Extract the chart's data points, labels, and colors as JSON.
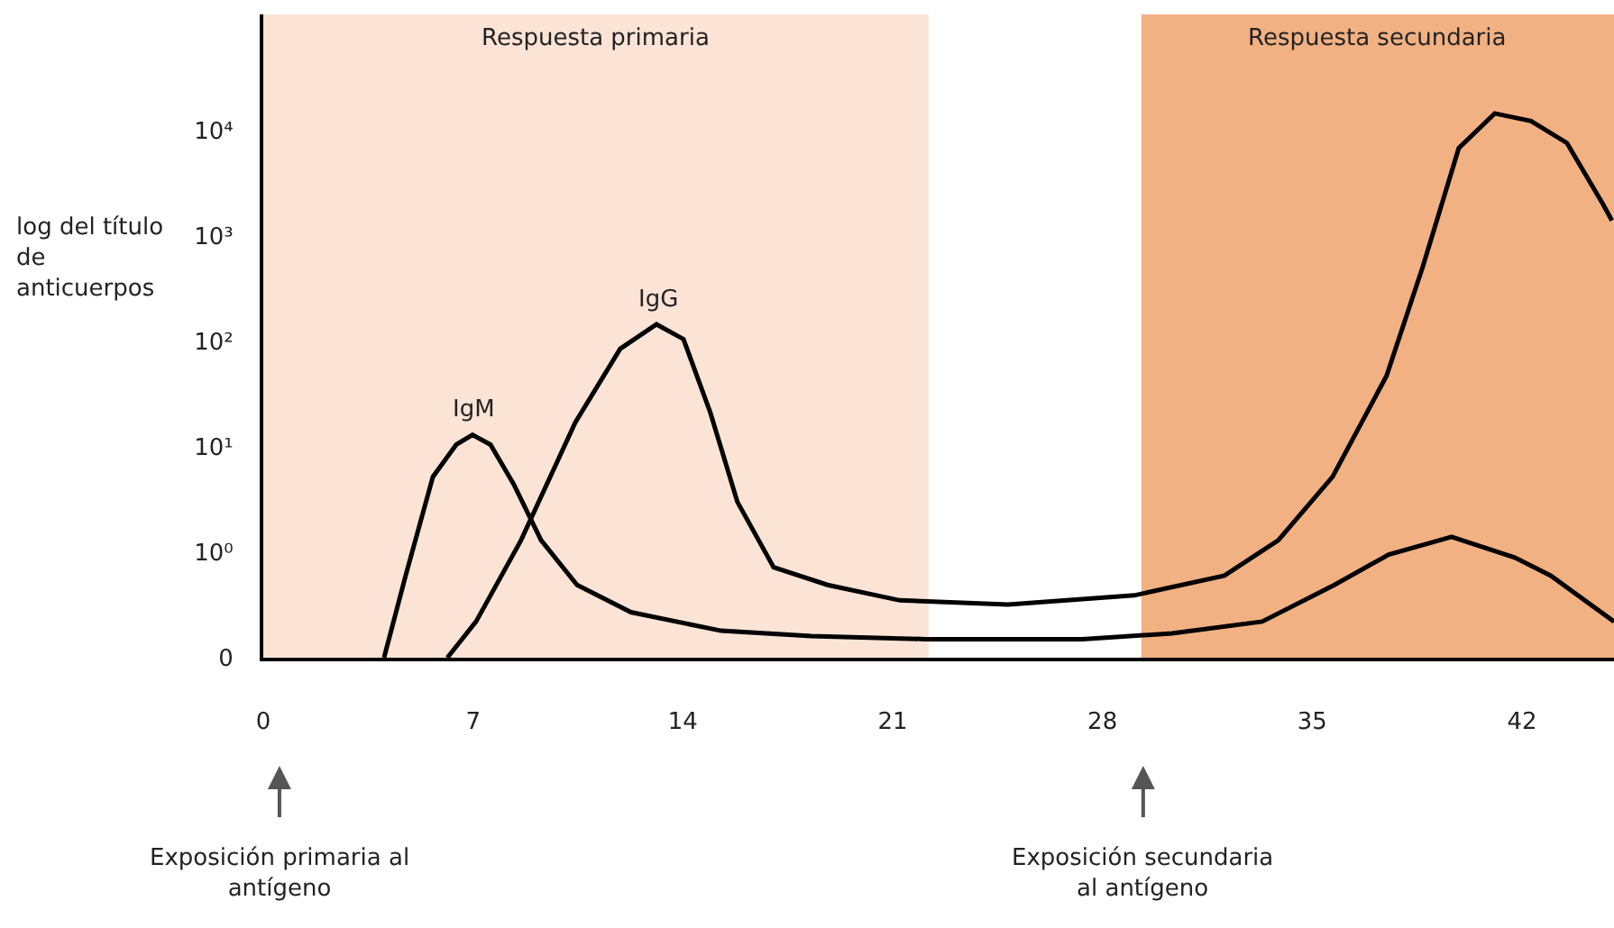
{
  "chart_data": {
    "type": "line",
    "ylabel": "log del título\nde\nanticuerpos",
    "xlim": [
      0,
      45.07
    ],
    "xticks": [
      0,
      7,
      14,
      21,
      28,
      35,
      42
    ],
    "log": "y",
    "ylim": [
      0,
      126000
    ],
    "yticks": [
      0,
      {
        "value": 1,
        "label": "10⁰"
      },
      {
        "value": 10,
        "label": "10¹"
      },
      {
        "value": 100,
        "label": "10²"
      },
      {
        "value": 1000,
        "label": "10³"
      },
      {
        "value": 10000,
        "label": "10⁴"
      }
    ],
    "marker": "none",
    "line_style": "solid",
    "series": [
      {
        "color": "#000000",
        "x": [
          4.03,
          4.75,
          5.66,
          6.44,
          6.98,
          7.58,
          8.36,
          9.27,
          10.47,
          12.27,
          15.28,
          18.29,
          22.08,
          27.32,
          30.32,
          33.33,
          35.74,
          37.55,
          39.65,
          41.76,
          42.96,
          45.07
        ],
        "values": [
          0.1,
          0.6,
          5.2,
          10.5,
          13,
          10.5,
          4.4,
          1.3,
          0.49,
          0.27,
          0.18,
          0.16,
          0.15,
          0.15,
          0.17,
          0.22,
          0.49,
          0.95,
          1.4,
          0.89,
          0.6,
          0.22
        ]
      },
      {
        "color": "#000000",
        "x": [
          6.14,
          7.1,
          8.6,
          10.41,
          11.91,
          13.12,
          14.02,
          14.92,
          15.82,
          17.03,
          18.83,
          21.24,
          24.85,
          29.06,
          32.07,
          33.87,
          35.68,
          37.48,
          38.69,
          39.89,
          41.09,
          42.3,
          43.5,
          44.7,
          45.0
        ],
        "values": [
          0.1,
          0.22,
          1.3,
          17,
          85,
          145,
          105,
          21,
          3,
          0.72,
          0.49,
          0.35,
          0.32,
          0.39,
          0.6,
          1.3,
          5.2,
          47,
          510,
          6800,
          14500,
          12300,
          7600,
          2000,
          1400
        ]
      }
    ],
    "bands": [
      {
        "axis": "x",
        "from": 0,
        "to": 22.2,
        "label": "Respuesta primaria",
        "color": "#fbe3d5"
      },
      {
        "axis": "x",
        "from": 29.3,
        "to": 45.07,
        "label": "Respuesta secundaria",
        "color": "#f2b183"
      }
    ],
    "annotations": [
      "IgM",
      "IgG",
      "Exposición primaria al\nantígeno",
      "Exposición secundaria\nal antígeno"
    ]
  }
}
